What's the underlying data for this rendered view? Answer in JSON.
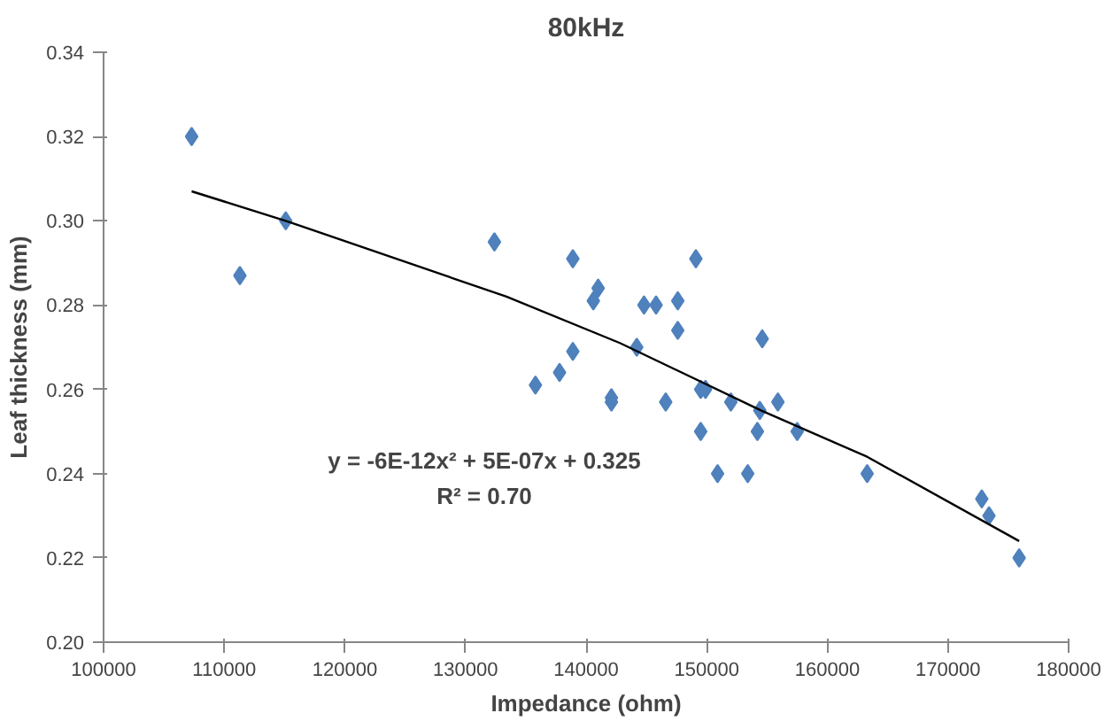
{
  "chart_data": {
    "type": "scatter",
    "title": "80kHz",
    "xlabel": "Impedance (ohm)",
    "ylabel": "Leaf thickness (mm)",
    "xlim": [
      100000,
      180000
    ],
    "xticks": [
      100000,
      110000,
      120000,
      130000,
      140000,
      150000,
      160000,
      170000,
      180000
    ],
    "ylim": [
      0.2,
      0.34
    ],
    "yticks": [
      {
        "value": 0.2,
        "label": "0.20"
      },
      {
        "value": 0.22,
        "label": "0.22"
      },
      {
        "value": 0.24,
        "label": "0.24"
      },
      {
        "value": 0.26,
        "label": "0.26"
      },
      {
        "value": 0.28,
        "label": "0.28"
      },
      {
        "value": 0.3,
        "label": "0.30"
      },
      {
        "value": 0.32,
        "label": "0.32"
      },
      {
        "value": 0.34,
        "label": "0.34"
      }
    ],
    "grid": false,
    "marker": "diamond",
    "series": [
      {
        "color": "#4f81bd",
        "x": [
          107300,
          111300,
          115100,
          132400,
          138900,
          141000,
          140600,
          138900,
          137800,
          135800,
          142100,
          142100,
          149100,
          144800,
          145800,
          147600,
          147600,
          144200,
          154600,
          146600,
          149500,
          149900,
          152000,
          154400,
          155900,
          149500,
          154200,
          157500,
          150900,
          153400,
          163300,
          172800,
          173400,
          175900
        ],
        "values": [
          0.32,
          0.287,
          0.3,
          0.295,
          0.291,
          0.284,
          0.281,
          0.269,
          0.264,
          0.261,
          0.258,
          0.257,
          0.291,
          0.28,
          0.28,
          0.281,
          0.274,
          0.27,
          0.272,
          0.257,
          0.26,
          0.26,
          0.257,
          0.255,
          0.257,
          0.25,
          0.25,
          0.25,
          0.24,
          0.24,
          0.24,
          0.234,
          0.23,
          0.22
        ]
      },
      {
        "type": "line",
        "color": "#000000",
        "marker": "none",
        "x": [
          107300,
          115100,
          133400,
          142800,
          154500,
          163300,
          175900
        ],
        "values": [
          0.307,
          0.3,
          0.282,
          0.271,
          0.255,
          0.244,
          0.224
        ]
      }
    ],
    "annotations": [
      "y = -6E-12x² + 5E-07x + 0.325",
      "R² = 0.70"
    ]
  }
}
